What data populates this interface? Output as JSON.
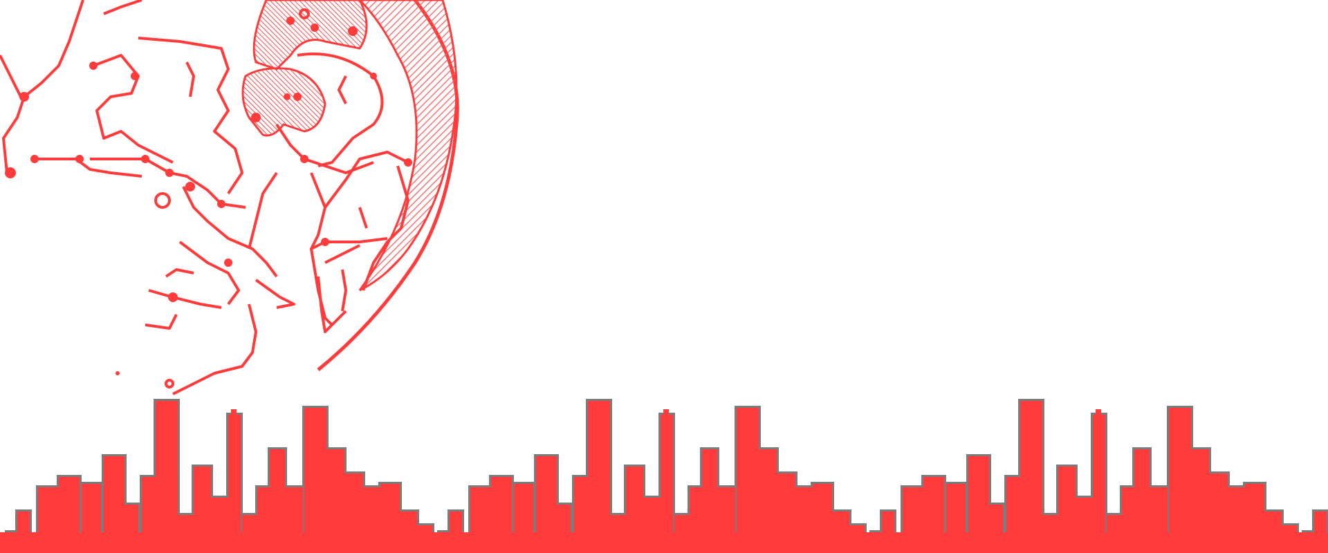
{
  "artwork": {
    "colors": {
      "background": "#ffffff",
      "primary": "#ff3b3b",
      "shadow": "#7c7c7c",
      "hatch": "#ff5a5a"
    },
    "icons": [
      "globe-network-icon",
      "city-skyline-icon"
    ]
  }
}
